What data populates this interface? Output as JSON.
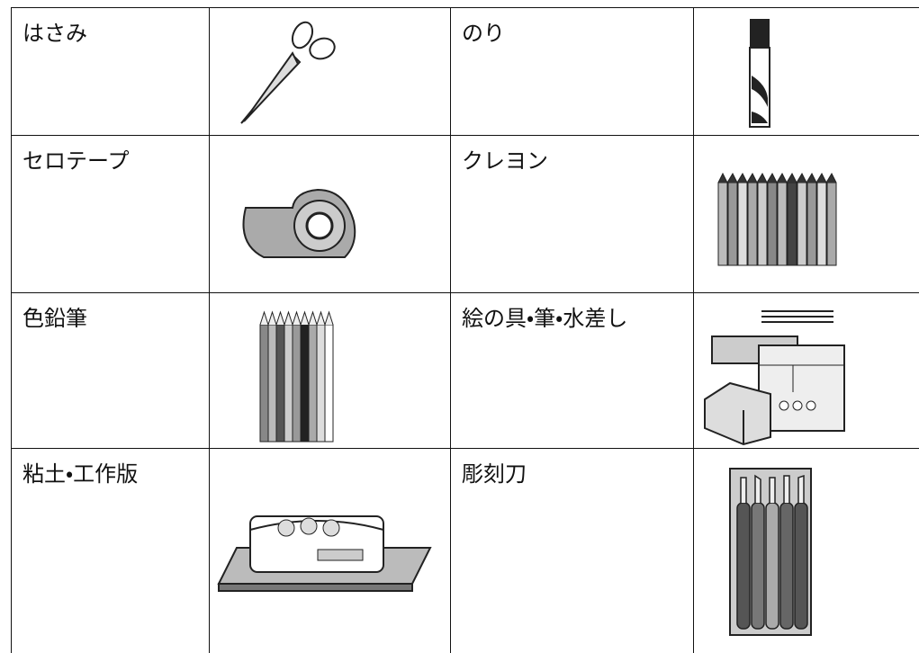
{
  "table": {
    "rows": [
      [
        "はさみ",
        "のり"
      ],
      [
        "セロテープ",
        "クレヨン"
      ],
      [
        "色鉛筆",
        "絵の具・筆・水差し"
      ],
      [
        "粘土・工作版",
        "彫刻刀"
      ]
    ]
  }
}
